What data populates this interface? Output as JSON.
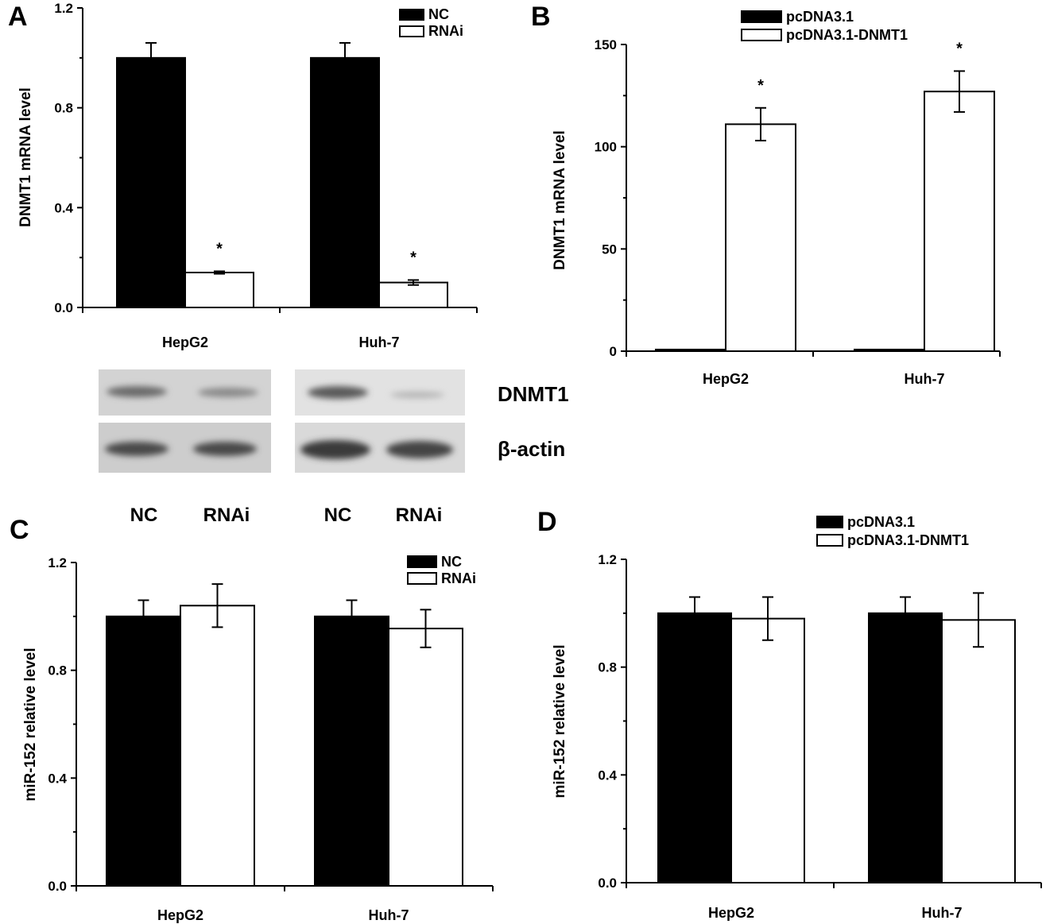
{
  "chart_data": [
    {
      "panel": "A",
      "type": "bar",
      "ylabel": "DNMT1 mRNA level",
      "ylim": [
        0,
        1.2
      ],
      "yticks": [
        "0.0",
        "0.4",
        "0.8",
        "1.2"
      ],
      "categories": [
        "HepG2",
        "Huh-7"
      ],
      "series": [
        {
          "name": "NC",
          "values": [
            1.0,
            1.0
          ],
          "errors": [
            0.06,
            0.06
          ],
          "color": "#000000"
        },
        {
          "name": "RNAi",
          "values": [
            0.14,
            0.1
          ],
          "errors": [
            0.005,
            0.01
          ],
          "color": "#ffffff"
        }
      ],
      "significance": [
        {
          "series": 1,
          "category": 0,
          "mark": "*"
        },
        {
          "series": 1,
          "category": 1,
          "mark": "*"
        }
      ],
      "legend": "top-right",
      "grid": false
    },
    {
      "panel": "B",
      "type": "bar",
      "ylabel": "DNMT1 mRNA level",
      "ylim": [
        0,
        150
      ],
      "yticks": [
        "0",
        "50",
        "100",
        "150"
      ],
      "categories": [
        "HepG2",
        "Huh-7"
      ],
      "series": [
        {
          "name": "pcDNA3.1",
          "values": [
            0.8,
            0.8
          ],
          "errors": [
            0,
            0
          ],
          "color": "#000000"
        },
        {
          "name": "pcDNA3.1-DNMT1",
          "values": [
            111,
            127
          ],
          "errors": [
            8,
            10
          ],
          "color": "#ffffff"
        }
      ],
      "significance": [
        {
          "series": 1,
          "category": 0,
          "mark": "*"
        },
        {
          "series": 1,
          "category": 1,
          "mark": "*"
        }
      ],
      "legend": "top-left",
      "grid": false
    },
    {
      "panel": "C",
      "type": "bar",
      "ylabel": "miR-152 relative level",
      "ylim": [
        0,
        1.2
      ],
      "yticks": [
        "0.0",
        "0.4",
        "0.8",
        "1.2"
      ],
      "categories": [
        "HepG2",
        "Huh-7"
      ],
      "series": [
        {
          "name": "NC",
          "values": [
            1.0,
            1.0
          ],
          "errors": [
            0.06,
            0.06
          ],
          "color": "#000000"
        },
        {
          "name": "RNAi",
          "values": [
            1.04,
            0.955
          ],
          "errors": [
            0.08,
            0.07
          ],
          "color": "#ffffff"
        }
      ],
      "legend": "top-right",
      "grid": false
    },
    {
      "panel": "D",
      "type": "bar",
      "ylabel": "miR-152 relative level",
      "ylim": [
        0,
        1.2
      ],
      "yticks": [
        "0.0",
        "0.4",
        "0.8",
        "1.2"
      ],
      "categories": [
        "HepG2",
        "Huh-7"
      ],
      "series": [
        {
          "name": "pcDNA3.1",
          "values": [
            1.0,
            1.0
          ],
          "errors": [
            0.06,
            0.06
          ],
          "color": "#000000"
        },
        {
          "name": "pcDNA3.1-DNMT1",
          "values": [
            0.98,
            0.975
          ],
          "errors": [
            0.08,
            0.1
          ],
          "color": "#ffffff"
        }
      ],
      "legend": "top-left",
      "grid": false
    }
  ],
  "blot": {
    "protein_labels": [
      "DNMT1",
      "β-actin"
    ],
    "lane_labels": [
      "NC",
      "RNAi",
      "NC",
      "RNAi"
    ],
    "cell_lines": [
      "HepG2",
      "Huh-7"
    ]
  }
}
